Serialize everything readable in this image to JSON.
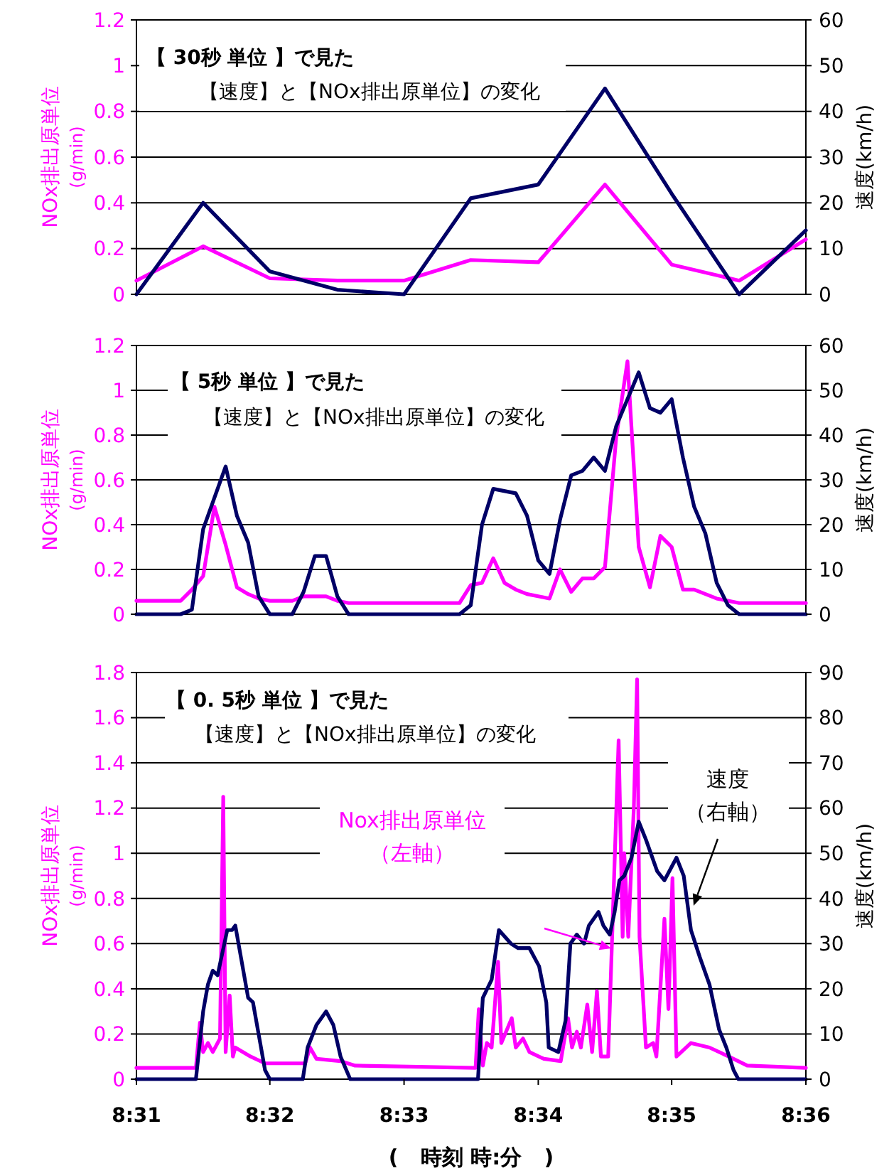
{
  "chart_data": [
    {
      "type": "line",
      "title": "【 30秒 単位 】で見た",
      "subtitle": "【速度】と【NOx排出原単位】の変化",
      "ylabel": "NOx排出原単位(g/min)",
      "y2label": "速度(km/h)",
      "tick_labels": "y",
      "grid": "y",
      "xlim": [
        8.5167,
        8.6
      ],
      "ylim": [
        0,
        1.2
      ],
      "yticks": [
        0,
        0.2,
        0.4,
        0.6,
        0.8,
        1,
        1.2
      ],
      "y2lim": [
        0,
        60
      ],
      "y2ticks": [
        0,
        10,
        20,
        30,
        40,
        50,
        60
      ],
      "series": [
        {
          "color": "#ff00ff",
          "x": [
            8.5167,
            8.525,
            8.5333,
            8.5417,
            8.55,
            8.5583,
            8.5667,
            8.575,
            8.5833,
            8.5917,
            8.6
          ],
          "values": [
            0.06,
            0.21,
            0.07,
            0.06,
            0.06,
            0.15,
            0.14,
            0.48,
            0.13,
            0.06,
            0.24
          ]
        },
        {
          "color": "#000066",
          "axis": "y2",
          "x": [
            8.5167,
            8.525,
            8.5333,
            8.5417,
            8.55,
            8.5583,
            8.5667,
            8.575,
            8.5833,
            8.5917,
            8.6
          ],
          "values": [
            0,
            20,
            5,
            1,
            0,
            21,
            24,
            45,
            22,
            0,
            14
          ]
        }
      ]
    },
    {
      "type": "line",
      "title": "【 5秒 単位 】で見た",
      "subtitle": "【速度】と【NOx排出原単位】の変化",
      "ylabel": "NOx排出原単位(g/min)",
      "y2label": "速度(km/h)",
      "tick_labels": "y",
      "grid": "y",
      "xlim": [
        8.5167,
        8.6
      ],
      "ylim": [
        0,
        1.2
      ],
      "yticks": [
        0,
        0.2,
        0.4,
        0.6,
        0.8,
        1,
        1.2
      ],
      "y2lim": [
        0,
        60
      ],
      "y2ticks": [
        0,
        10,
        20,
        30,
        40,
        50,
        60
      ],
      "series": [
        {
          "color": "#ff00ff",
          "x": [
            8.5167,
            8.5222,
            8.5236,
            8.525,
            8.5264,
            8.5278,
            8.5292,
            8.5306,
            8.5319,
            8.5333,
            8.5361,
            8.5375,
            8.5403,
            8.5417,
            8.5431,
            8.5569,
            8.5583,
            8.5597,
            8.5611,
            8.5625,
            8.5639,
            8.5653,
            8.5667,
            8.5681,
            8.5694,
            8.5708,
            8.5722,
            8.5736,
            8.575,
            8.5764,
            8.5778,
            8.5792,
            8.5806,
            8.5819,
            8.5833,
            8.5847,
            8.5861,
            8.5875,
            8.5889,
            8.5903,
            8.5917,
            8.6
          ],
          "values": [
            0.06,
            0.06,
            0.11,
            0.17,
            0.48,
            0.31,
            0.12,
            0.09,
            0.07,
            0.06,
            0.06,
            0.08,
            0.08,
            0.06,
            0.05,
            0.05,
            0.13,
            0.14,
            0.25,
            0.14,
            0.11,
            0.09,
            0.08,
            0.07,
            0.2,
            0.1,
            0.16,
            0.16,
            0.21,
            0.79,
            1.13,
            0.3,
            0.12,
            0.35,
            0.3,
            0.11,
            0.11,
            0.09,
            0.07,
            0.06,
            0.05,
            0.05
          ]
        },
        {
          "color": "#000066",
          "axis": "y2",
          "x": [
            8.5167,
            8.5222,
            8.5236,
            8.525,
            8.5278,
            8.5292,
            8.5306,
            8.5319,
            8.5333,
            8.5361,
            8.5375,
            8.5389,
            8.5403,
            8.5417,
            8.5431,
            8.5569,
            8.5583,
            8.5597,
            8.5611,
            8.5639,
            8.5653,
            8.5667,
            8.5681,
            8.5694,
            8.5708,
            8.5722,
            8.5736,
            8.575,
            8.5764,
            8.5778,
            8.5792,
            8.5806,
            8.5819,
            8.5833,
            8.5847,
            8.5861,
            8.5875,
            8.5889,
            8.5903,
            8.5917,
            8.6
          ],
          "values": [
            0,
            0,
            1,
            19,
            33,
            22,
            16,
            4,
            0,
            0,
            5,
            13,
            13,
            4,
            0,
            0,
            2,
            20,
            28,
            27,
            22,
            12,
            9,
            21,
            31,
            32,
            35,
            32,
            42,
            48,
            54,
            46,
            45,
            48,
            35,
            24,
            18,
            7,
            2,
            0,
            0
          ]
        }
      ]
    },
    {
      "type": "line",
      "title": "【 0. 5秒 単位 】で見た",
      "subtitle": "【速度】と【NOx排出原単位】の変化",
      "ylabel": "NOx排出原単位(g/min)",
      "y2label": "速度(km/h)",
      "xlabel": "(   時刻 時:分   )",
      "grid": "y",
      "xlim": [
        8.5167,
        8.6
      ],
      "xticks": [
        {
          "value": 8.5167,
          "label": "8:31"
        },
        {
          "value": 8.5333,
          "label": "8:32"
        },
        {
          "value": 8.55,
          "label": "8:33"
        },
        {
          "value": 8.5667,
          "label": "8:34"
        },
        {
          "value": 8.5833,
          "label": "8:35"
        },
        {
          "value": 8.6,
          "label": "8:36"
        }
      ],
      "ylim": [
        0,
        1.8
      ],
      "yticks": [
        0,
        0.2,
        0.4,
        0.6,
        0.8,
        1,
        1.2,
        1.4,
        1.6,
        1.8
      ],
      "y2lim": [
        0,
        90
      ],
      "y2ticks": [
        0,
        10,
        20,
        30,
        40,
        50,
        60,
        70,
        80,
        90
      ],
      "series": [
        {
          "name": "Nox排出原単位（左軸）",
          "color": "#ff00ff",
          "x": [
            8.5167,
            8.5241,
            8.5246,
            8.525,
            8.5256,
            8.5262,
            8.5271,
            8.5275,
            8.5278,
            8.5283,
            8.5287,
            8.529,
            8.5309,
            8.5327,
            8.5377,
            8.5383,
            8.5391,
            8.5421,
            8.5439,
            8.5589,
            8.5593,
            8.5598,
            8.5603,
            8.5609,
            8.5617,
            8.5621,
            8.5634,
            8.5639,
            8.5648,
            8.5656,
            8.5674,
            8.5695,
            8.5704,
            8.5709,
            8.5715,
            8.572,
            8.5728,
            8.5734,
            8.574,
            8.5745,
            8.5754,
            8.5767,
            8.5772,
            8.5774,
            8.5779,
            8.5786,
            8.579,
            8.5793,
            8.5801,
            8.581,
            8.5814,
            8.5824,
            8.5829,
            8.5834,
            8.5839,
            8.5857,
            8.588,
            8.5904,
            8.5927,
            8.6
          ],
          "values": [
            0.05,
            0.05,
            0.25,
            0.12,
            0.16,
            0.12,
            0.18,
            1.25,
            0.12,
            0.37,
            0.1,
            0.14,
            0.1,
            0.07,
            0.07,
            0.14,
            0.09,
            0.08,
            0.06,
            0.05,
            0.31,
            0.06,
            0.16,
            0.14,
            0.52,
            0.16,
            0.27,
            0.14,
            0.18,
            0.12,
            0.09,
            0.08,
            0.27,
            0.14,
            0.21,
            0.14,
            0.33,
            0.12,
            0.39,
            0.1,
            0.1,
            1.5,
            0.63,
            1.0,
            0.63,
            1.21,
            1.77,
            0.63,
            0.14,
            0.16,
            0.1,
            0.71,
            0.31,
            0.89,
            0.1,
            0.16,
            0.14,
            0.1,
            0.06,
            0.05
          ]
        },
        {
          "name": "速度（右軸）",
          "color": "#000066",
          "axis": "y2",
          "x": [
            8.5167,
            8.5241,
            8.525,
            8.5256,
            8.5262,
            8.5268,
            8.5274,
            8.528,
            8.5286,
            8.529,
            8.5297,
            8.5306,
            8.5312,
            8.5321,
            8.5327,
            8.5333,
            8.5374,
            8.538,
            8.5391,
            8.5403,
            8.5412,
            8.5421,
            8.5433,
            8.5592,
            8.5598,
            8.5609,
            8.5618,
            8.5633,
            8.5642,
            8.5656,
            8.5668,
            8.5677,
            8.568,
            8.5692,
            8.5701,
            8.5707,
            8.5715,
            8.5724,
            8.573,
            8.5742,
            8.5748,
            8.5756,
            8.5762,
            8.5768,
            8.5774,
            8.5783,
            8.5792,
            8.5801,
            8.5815,
            8.5824,
            8.5833,
            8.5839,
            8.5848,
            8.5857,
            8.5868,
            8.588,
            8.5892,
            8.5901,
            8.591,
            8.5916,
            8.6
          ],
          "values": [
            0,
            0,
            15,
            21,
            24,
            23,
            28,
            33,
            33,
            34,
            27,
            18,
            17,
            8,
            2,
            0,
            0,
            7,
            12,
            15,
            12,
            5,
            0,
            0,
            18,
            22,
            33,
            30,
            29,
            29,
            25,
            17,
            7,
            6,
            13,
            30,
            32,
            30,
            34,
            37,
            34,
            32,
            37,
            44,
            45,
            49,
            57,
            53,
            46,
            44,
            47,
            49,
            45,
            33,
            27,
            21,
            11,
            7,
            2,
            0,
            0
          ]
        }
      ]
    }
  ]
}
